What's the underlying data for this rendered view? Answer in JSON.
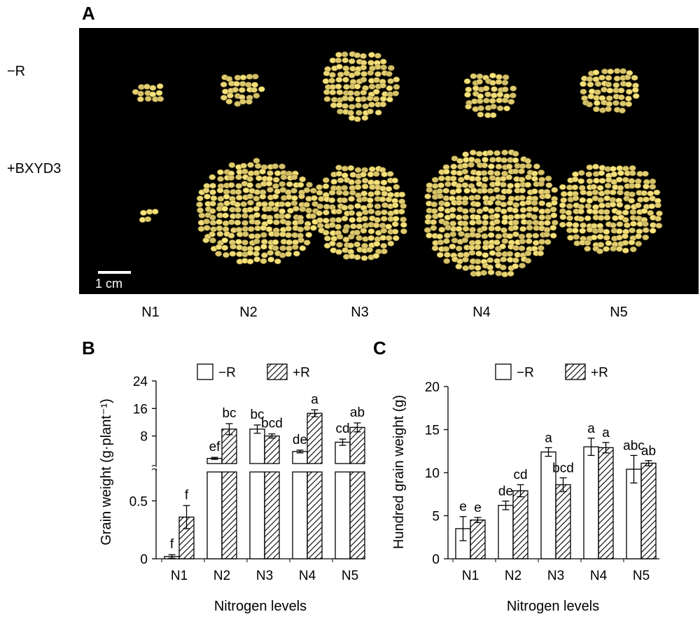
{
  "panel_a": {
    "letter": "A",
    "row_labels": [
      "−R",
      "+BXYD3"
    ],
    "scale_bar_label": "1 cm",
    "columns": [
      "N1",
      "N2",
      "N3",
      "N4",
      "N5"
    ],
    "seed_color": "#d8c772",
    "background_color": "#000000"
  },
  "chart_data": [
    {
      "panel": "B",
      "type": "bar",
      "xlabel": "Nitrogen levels",
      "ylabel": "Grain weight (g·plant⁻¹)",
      "categories": [
        "N1",
        "N2",
        "N3",
        "N4",
        "N5"
      ],
      "broken_axis": true,
      "lower_ticks": [
        "0",
        "0.5"
      ],
      "upper_ticks": [
        "8",
        "16",
        "24"
      ],
      "ylim_lower": [
        0,
        0.75
      ],
      "ylim_upper": [
        0,
        24
      ],
      "legend": [
        "−R",
        "+R"
      ],
      "series": [
        {
          "name": "−R",
          "style": "open",
          "values": [
            0.02,
            1.5,
            10.0,
            3.5,
            6.2
          ],
          "errors": [
            0.015,
            0.3,
            1.2,
            0.4,
            0.9
          ],
          "letters": [
            "f",
            "ef",
            "bc",
            "de",
            "cd"
          ]
        },
        {
          "name": "+R",
          "style": "hatched",
          "values": [
            0.36,
            10.0,
            8.0,
            14.6,
            10.5
          ],
          "errors": [
            0.1,
            1.6,
            0.6,
            1.0,
            1.3
          ],
          "letters": [
            "f",
            "bc",
            "bcd",
            "a",
            "ab"
          ]
        }
      ]
    },
    {
      "panel": "C",
      "type": "bar",
      "xlabel": "Nitrogen levels",
      "ylabel": "Hundred grain weight (g)",
      "categories": [
        "N1",
        "N2",
        "N3",
        "N4",
        "N5"
      ],
      "ylim": [
        0,
        20
      ],
      "yticks": [
        0,
        5,
        10,
        15,
        20
      ],
      "legend": [
        "−R",
        "+R"
      ],
      "series": [
        {
          "name": "−R",
          "style": "open",
          "values": [
            3.5,
            6.2,
            12.4,
            13.0,
            10.4
          ],
          "errors": [
            1.4,
            0.5,
            0.5,
            1.0,
            1.6
          ],
          "letters": [
            "e",
            "de",
            "a",
            "a",
            "abc"
          ]
        },
        {
          "name": "+R",
          "style": "hatched",
          "values": [
            4.5,
            7.9,
            8.6,
            12.9,
            11.1
          ],
          "errors": [
            0.3,
            0.7,
            0.8,
            0.6,
            0.3
          ],
          "letters": [
            "e",
            "cd",
            "bcd",
            "a",
            "ab"
          ]
        }
      ]
    }
  ]
}
